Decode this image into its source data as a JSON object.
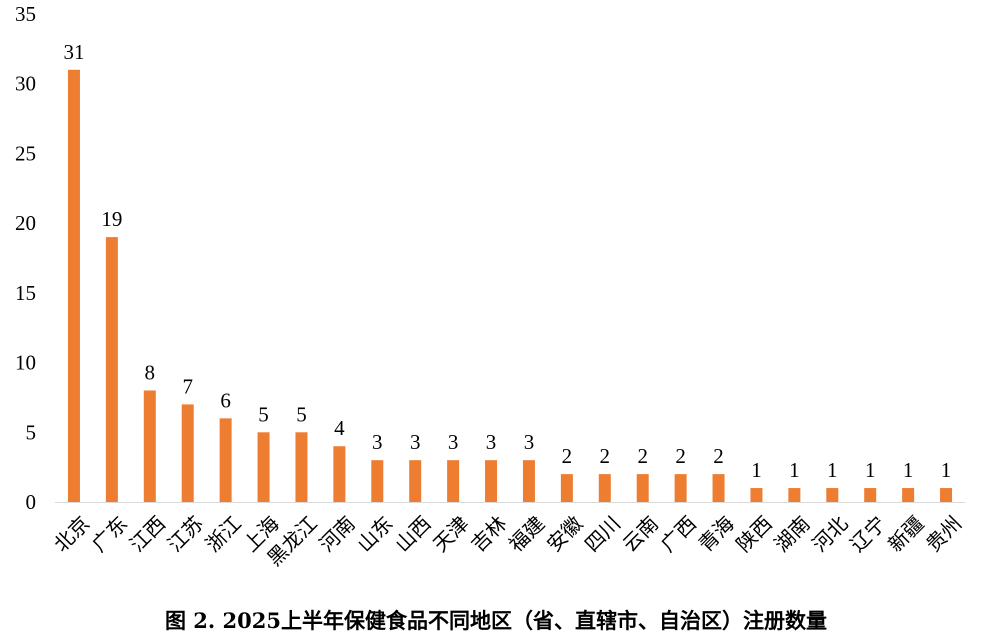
{
  "caption": "图 2. 2025上半年保健食品不同地区（省、直辖市、自治区）注册数量",
  "chart_data": {
    "type": "bar",
    "title": "图 2. 2025上半年保健食品不同地区（省、直辖市、自治区）注册数量",
    "xlabel": "",
    "ylabel": "",
    "ylim": [
      0,
      35
    ],
    "yticks": [
      0,
      5,
      10,
      15,
      20,
      25,
      30,
      35
    ],
    "grid": false,
    "legend": "none",
    "bar_color": "#ED7D31",
    "categories": [
      "北京",
      "广东",
      "江西",
      "江苏",
      "浙江",
      "上海",
      "黑龙江",
      "河南",
      "山东",
      "山西",
      "天津",
      "吉林",
      "福建",
      "安徽",
      "四川",
      "云南",
      "广西",
      "青海",
      "陕西",
      "湖南",
      "河北",
      "辽宁",
      "新疆",
      "贵州"
    ],
    "values": [
      31,
      19,
      8,
      7,
      6,
      5,
      5,
      4,
      3,
      3,
      3,
      3,
      3,
      2,
      2,
      2,
      2,
      2,
      1,
      1,
      1,
      1,
      1,
      1
    ]
  }
}
